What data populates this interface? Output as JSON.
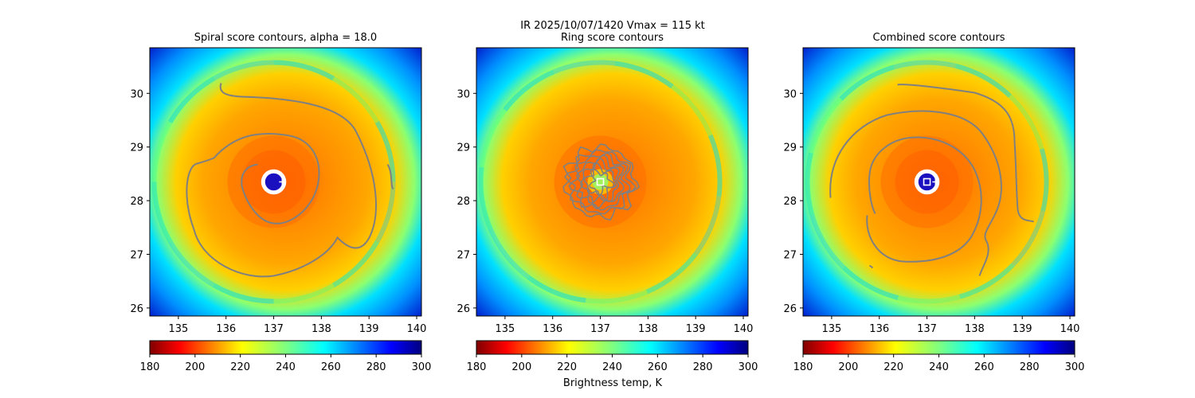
{
  "figure": {
    "suptitle_line1": "IR  2025/10/07/1420    Vmax = 115 kt",
    "colorbar_label": "Brightness temp, K"
  },
  "chart_data": [
    {
      "type": "heatmap",
      "title": "Spiral score contours, alpha = 18.0",
      "xlim": [
        134.4,
        140.1
      ],
      "ylim": [
        25.85,
        30.85
      ],
      "xticks": [
        135,
        136,
        137,
        138,
        139,
        140
      ],
      "yticks": [
        26,
        27,
        28,
        29,
        30
      ],
      "field": "Brightness temperature (K)",
      "colormap": "jet_r",
      "center": [
        137.0,
        28.35
      ],
      "eye_radius_deg": 0.18,
      "contour_color": "#808080",
      "markers": [
        {
          "symbol": "plus",
          "lon": 137.18,
          "lat": 28.35,
          "color": "#ffffff"
        }
      ],
      "colorbar": {
        "min": 180,
        "max": 300,
        "ticks": [
          180,
          200,
          220,
          240,
          260,
          280,
          300
        ]
      }
    },
    {
      "type": "heatmap",
      "title": "Ring score contours",
      "xlim": [
        134.4,
        140.1
      ],
      "ylim": [
        25.85,
        30.85
      ],
      "xticks": [
        135,
        136,
        137,
        138,
        139,
        140
      ],
      "yticks": [
        26,
        27,
        28,
        29,
        30
      ],
      "field": "Brightness temperature (K)",
      "colormap": "jet_r",
      "center": [
        137.0,
        28.35
      ],
      "eye_radius_deg": 0.0,
      "contour_color": "#808080",
      "markers": [
        {
          "symbol": "square",
          "lon": 137.0,
          "lat": 28.35,
          "color": "#ffffff"
        }
      ],
      "colorbar": {
        "min": 180,
        "max": 300,
        "ticks": [
          180,
          200,
          220,
          240,
          260,
          280,
          300
        ]
      }
    },
    {
      "type": "heatmap",
      "title": "Combined score contours",
      "xlim": [
        134.4,
        140.1
      ],
      "ylim": [
        25.85,
        30.85
      ],
      "xticks": [
        135,
        136,
        137,
        138,
        139,
        140
      ],
      "yticks": [
        26,
        27,
        28,
        29,
        30
      ],
      "field": "Brightness temperature (K)",
      "colormap": "jet_r",
      "center": [
        137.0,
        28.35
      ],
      "eye_radius_deg": 0.18,
      "contour_color": "#808080",
      "markers": [
        {
          "symbol": "square",
          "lon": 137.0,
          "lat": 28.35,
          "color": "#ffffff"
        },
        {
          "symbol": "plus",
          "lon": 137.18,
          "lat": 28.35,
          "color": "#ffffff"
        }
      ],
      "colorbar": {
        "min": 180,
        "max": 300,
        "ticks": [
          180,
          200,
          220,
          240,
          260,
          280,
          300
        ]
      }
    }
  ]
}
